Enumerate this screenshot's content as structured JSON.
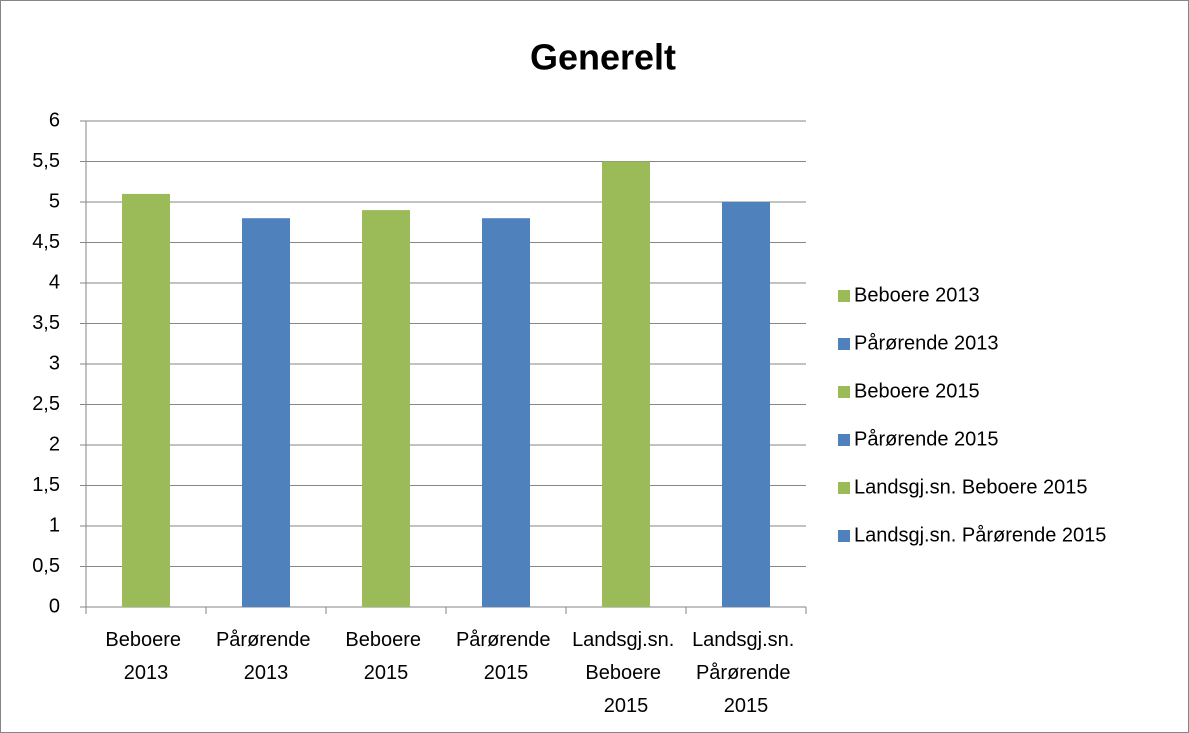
{
  "chart_data": {
    "type": "bar",
    "title": "Generelt",
    "categories": [
      "Beboere 2013",
      "Pårørende 2013",
      "Beboere 2015",
      "Pårørende 2015",
      "Landsgj.sn. Beboere 2015",
      "Landsgj.sn. Pårørende 2015"
    ],
    "values": [
      5.1,
      4.8,
      4.9,
      4.8,
      5.5,
      5.0
    ],
    "colors": [
      "#9bbb59",
      "#4f81bd",
      "#9bbb59",
      "#4f81bd",
      "#9bbb59",
      "#4f81bd"
    ],
    "ylim": [
      0,
      6
    ],
    "yticks": [
      0,
      {
        "value": 0.5,
        "label": "0,5"
      },
      1,
      {
        "value": 1.5,
        "label": "1,5"
      },
      2,
      {
        "value": 2.5,
        "label": "2,5"
      },
      3,
      {
        "value": 3.5,
        "label": "3,5"
      },
      4,
      {
        "value": 4.5,
        "label": "4,5"
      },
      5,
      {
        "value": 5.5,
        "label": "5,5"
      },
      6
    ],
    "grid": true,
    "legend": "right"
  }
}
